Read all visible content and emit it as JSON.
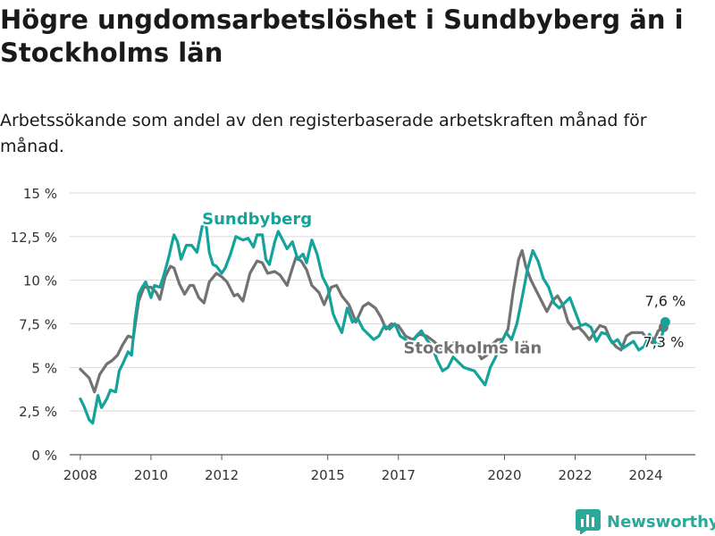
{
  "chart_data": {
    "type": "line",
    "title": "Högre ungdomsarbetslöshet i Sundbyberg än i Stockholms län",
    "subtitle": "Arbetssökande som andel av den registerbaserade arbetskraften månad för månad.",
    "xlabel": "",
    "ylabel": "",
    "grid": true,
    "ylim": [
      0,
      15
    ],
    "y_ticks": [
      0,
      2.5,
      5,
      7.5,
      10,
      12.5,
      15
    ],
    "y_tick_labels": [
      "0 %",
      "2,5 %",
      "5 %",
      "7,5 %",
      "10 %",
      "12,5 %",
      "15 %"
    ],
    "xlim": [
      2007.7,
      2025.4
    ],
    "x_ticks": [
      2008,
      2010,
      2012,
      2015,
      2017,
      2020,
      2022,
      2024
    ],
    "x_tick_labels": [
      "2008",
      "2010",
      "2012",
      "2015",
      "2017",
      "2020",
      "2022",
      "2024"
    ],
    "series": [
      {
        "name": "Stockholms län",
        "label": "Stockholms län",
        "color": "#727272",
        "end_label": "7,3 %",
        "x": [
          2008.0,
          2008.25,
          2008.4,
          2008.55,
          2008.75,
          2008.9,
          2009.05,
          2009.2,
          2009.35,
          2009.5,
          2009.65,
          2009.8,
          2010.0,
          2010.15,
          2010.25,
          2010.4,
          2010.55,
          2010.65,
          2010.8,
          2010.95,
          2011.1,
          2011.2,
          2011.35,
          2011.5,
          2011.65,
          2011.85,
          2012.0,
          2012.15,
          2012.35,
          2012.45,
          2012.6,
          2012.8,
          2013.0,
          2013.15,
          2013.3,
          2013.5,
          2013.65,
          2013.85,
          2014.0,
          2014.1,
          2014.25,
          2014.4,
          2014.55,
          2014.75,
          2014.9,
          2015.1,
          2015.25,
          2015.4,
          2015.6,
          2015.8,
          2016.0,
          2016.15,
          2016.35,
          2016.5,
          2016.65,
          2016.8,
          2017.0,
          2017.2,
          2017.4,
          2017.6,
          2017.8,
          2018.0,
          2018.2,
          2018.4,
          2018.6,
          2018.8,
          2019.0,
          2019.2,
          2019.35,
          2019.5,
          2019.65,
          2019.8,
          2019.95,
          2020.1,
          2020.25,
          2020.4,
          2020.5,
          2020.6,
          2020.75,
          2020.9,
          2021.05,
          2021.2,
          2021.35,
          2021.5,
          2021.65,
          2021.8,
          2021.95,
          2022.1,
          2022.25,
          2022.4,
          2022.55,
          2022.7,
          2022.85,
          2023.0,
          2023.15,
          2023.3,
          2023.45,
          2023.6,
          2023.75,
          2023.9,
          2024.05,
          2024.2,
          2024.35,
          2024.5
        ],
        "y": [
          4.9,
          4.4,
          3.6,
          4.6,
          5.2,
          5.4,
          5.7,
          6.3,
          6.8,
          6.7,
          8.8,
          9.6,
          9.6,
          9.3,
          8.9,
          10.2,
          10.8,
          10.7,
          9.8,
          9.2,
          9.7,
          9.7,
          9.0,
          8.7,
          9.9,
          10.4,
          10.2,
          9.9,
          9.1,
          9.2,
          8.8,
          10.4,
          11.1,
          11.0,
          10.4,
          10.5,
          10.3,
          9.7,
          10.7,
          11.3,
          11.1,
          10.6,
          9.7,
          9.3,
          8.6,
          9.6,
          9.7,
          9.1,
          8.6,
          7.6,
          8.5,
          8.7,
          8.4,
          7.9,
          7.2,
          7.5,
          7.4,
          6.8,
          6.6,
          6.9,
          6.8,
          6.5,
          6.1,
          6.0,
          6.5,
          6.3,
          5.9,
          6.0,
          5.5,
          5.7,
          6.3,
          6.6,
          6.6,
          7.2,
          9.4,
          11.2,
          11.7,
          10.8,
          10.0,
          9.4,
          8.8,
          8.2,
          8.8,
          9.1,
          8.6,
          7.6,
          7.2,
          7.3,
          7.0,
          6.6,
          7.0,
          7.4,
          7.3,
          6.6,
          6.2,
          6.0,
          6.8,
          7.0,
          7.0,
          7.0,
          6.6,
          6.4,
          7.1,
          7.3
        ]
      },
      {
        "name": "Sundbyberg",
        "label": "Sundbyberg",
        "color": "#14a39a",
        "end_label": "7,6 %",
        "x": [
          2008.0,
          2008.1,
          2008.25,
          2008.35,
          2008.5,
          2008.6,
          2008.75,
          2008.85,
          2009.0,
          2009.1,
          2009.2,
          2009.35,
          2009.45,
          2009.55,
          2009.65,
          2009.75,
          2009.85,
          2010.0,
          2010.1,
          2010.25,
          2010.35,
          2010.5,
          2010.6,
          2010.65,
          2010.75,
          2010.85,
          2011.0,
          2011.15,
          2011.3,
          2011.45,
          2011.55,
          2011.65,
          2011.75,
          2011.85,
          2012.0,
          2012.1,
          2012.25,
          2012.4,
          2012.6,
          2012.75,
          2012.9,
          2013.0,
          2013.15,
          2013.25,
          2013.35,
          2013.5,
          2013.6,
          2013.75,
          2013.85,
          2014.0,
          2014.15,
          2014.3,
          2014.4,
          2014.55,
          2014.7,
          2014.85,
          2015.0,
          2015.15,
          2015.25,
          2015.4,
          2015.55,
          2015.7,
          2015.85,
          2016.0,
          2016.15,
          2016.3,
          2016.45,
          2016.6,
          2016.75,
          2016.9,
          2017.05,
          2017.2,
          2017.35,
          2017.5,
          2017.65,
          2017.8,
          2017.95,
          2018.1,
          2018.25,
          2018.4,
          2018.55,
          2018.7,
          2018.85,
          2019.0,
          2019.15,
          2019.3,
          2019.45,
          2019.6,
          2019.75,
          2019.9,
          2020.05,
          2020.2,
          2020.35,
          2020.5,
          2020.65,
          2020.8,
          2020.95,
          2021.1,
          2021.25,
          2021.4,
          2021.55,
          2021.7,
          2021.85,
          2022.0,
          2022.15,
          2022.3,
          2022.45,
          2022.6,
          2022.75,
          2022.9,
          2023.05,
          2023.2,
          2023.35,
          2023.5,
          2023.65,
          2023.8,
          2023.95,
          2024.1,
          2024.25,
          2024.35,
          2024.45,
          2024.55
        ],
        "y": [
          3.2,
          2.8,
          2.0,
          1.8,
          3.4,
          2.7,
          3.2,
          3.7,
          3.6,
          4.8,
          5.2,
          5.9,
          5.7,
          7.8,
          9.2,
          9.6,
          9.9,
          9.0,
          9.7,
          9.6,
          10.2,
          11.3,
          12.2,
          12.6,
          12.2,
          11.2,
          12.0,
          12.0,
          11.6,
          13.1,
          13.3,
          11.6,
          10.9,
          10.8,
          10.4,
          10.7,
          11.5,
          12.5,
          12.3,
          12.4,
          11.9,
          12.6,
          12.6,
          11.2,
          10.9,
          12.2,
          12.8,
          12.2,
          11.8,
          12.2,
          11.2,
          11.5,
          11.0,
          12.3,
          11.5,
          10.2,
          9.6,
          8.1,
          7.6,
          7.0,
          8.4,
          7.6,
          7.8,
          7.2,
          6.9,
          6.6,
          6.8,
          7.4,
          7.2,
          7.5,
          6.8,
          6.6,
          6.2,
          6.8,
          7.1,
          6.6,
          6.2,
          5.4,
          4.8,
          5.0,
          5.6,
          5.3,
          5.0,
          4.9,
          4.8,
          4.4,
          4.0,
          5.0,
          5.6,
          6.4,
          7.0,
          6.6,
          7.5,
          9.0,
          10.6,
          11.7,
          11.1,
          10.1,
          9.6,
          8.7,
          8.4,
          8.7,
          9.0,
          8.2,
          7.4,
          7.5,
          7.3,
          6.5,
          7.0,
          6.9,
          6.4,
          6.6,
          6.1,
          6.3,
          6.5,
          6.0,
          6.2,
          6.9,
          6.5,
          6.2,
          6.8,
          7.6
        ]
      }
    ]
  },
  "footer": {
    "brand": "Newsworthy",
    "brand_color": "#2aa89a",
    "logo_icon": "bar-chart-icon"
  }
}
